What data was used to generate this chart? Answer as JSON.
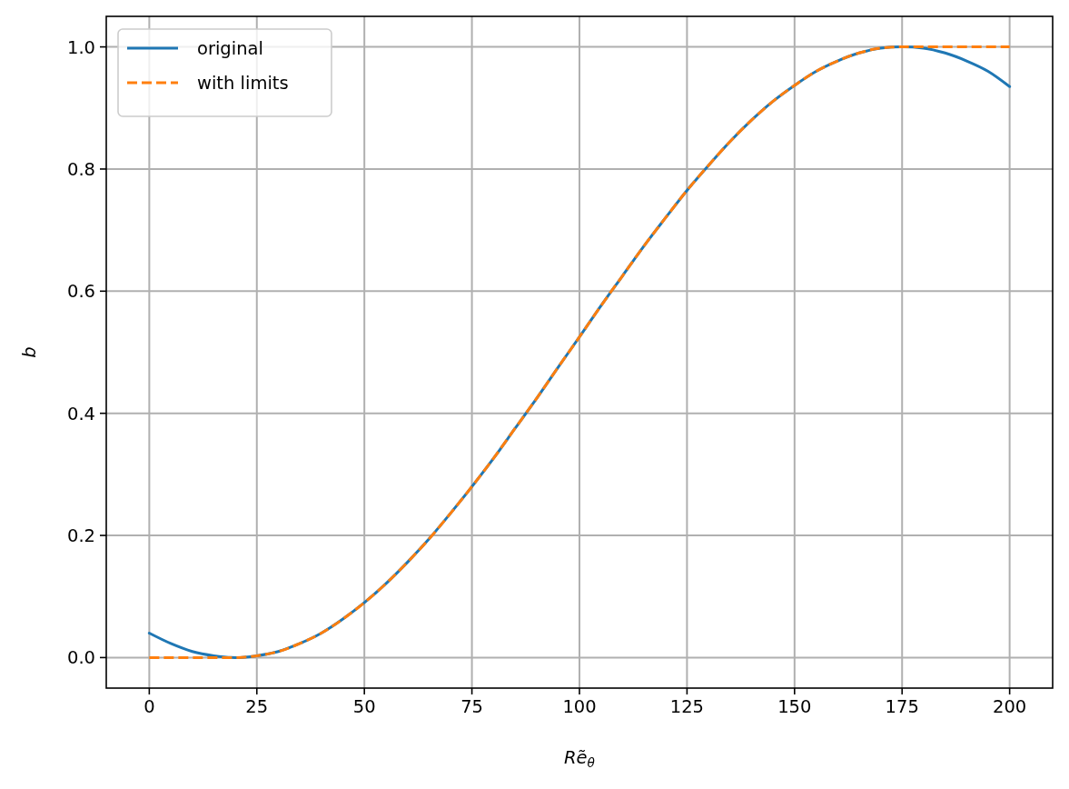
{
  "chart_data": {
    "type": "line",
    "xlabel": "Rẽ$_{θ}$",
    "ylabel": "b",
    "x": [
      0,
      5,
      10,
      15,
      20,
      25,
      30,
      35,
      40,
      45,
      50,
      55,
      60,
      65,
      70,
      75,
      80,
      85,
      90,
      95,
      100,
      105,
      110,
      115,
      120,
      125,
      130,
      135,
      140,
      145,
      150,
      155,
      160,
      165,
      170,
      175,
      180,
      185,
      190,
      195,
      200
    ],
    "series": [
      {
        "name": "original",
        "color": "#1f77b4",
        "line_style": "solid",
        "values": [
          0.04,
          0.023,
          0.01,
          0.003,
          0,
          0.003,
          0.01,
          0.023,
          0.04,
          0.063,
          0.09,
          0.121,
          0.156,
          0.194,
          0.236,
          0.28,
          0.326,
          0.375,
          0.424,
          0.475,
          0.525,
          0.576,
          0.625,
          0.674,
          0.72,
          0.765,
          0.806,
          0.845,
          0.88,
          0.911,
          0.937,
          0.96,
          0.977,
          0.99,
          0.998,
          1,
          0.998,
          0.99,
          0.977,
          0.96,
          0.935
        ]
      },
      {
        "name": "with limits",
        "color": "#ff7f0e",
        "line_style": "dashed",
        "values": [
          0,
          0,
          0,
          0,
          0,
          0.003,
          0.01,
          0.023,
          0.04,
          0.063,
          0.09,
          0.121,
          0.156,
          0.194,
          0.236,
          0.28,
          0.326,
          0.375,
          0.424,
          0.475,
          0.525,
          0.576,
          0.625,
          0.674,
          0.72,
          0.765,
          0.806,
          0.845,
          0.88,
          0.911,
          0.937,
          0.96,
          0.977,
          0.99,
          0.998,
          1,
          1,
          1,
          1,
          1,
          1
        ]
      }
    ],
    "xlim": [
      -10,
      210
    ],
    "xticks": [
      0,
      25,
      50,
      75,
      100,
      125,
      150,
      175,
      200
    ],
    "ylim": [
      -0.05,
      1.05
    ],
    "yticks": [
      {
        "value": 0,
        "label": "0.0"
      },
      0.2,
      0.4,
      0.6,
      0.8,
      {
        "value": 1,
        "label": "1.0"
      }
    ],
    "grid": true,
    "legend": "top left"
  }
}
